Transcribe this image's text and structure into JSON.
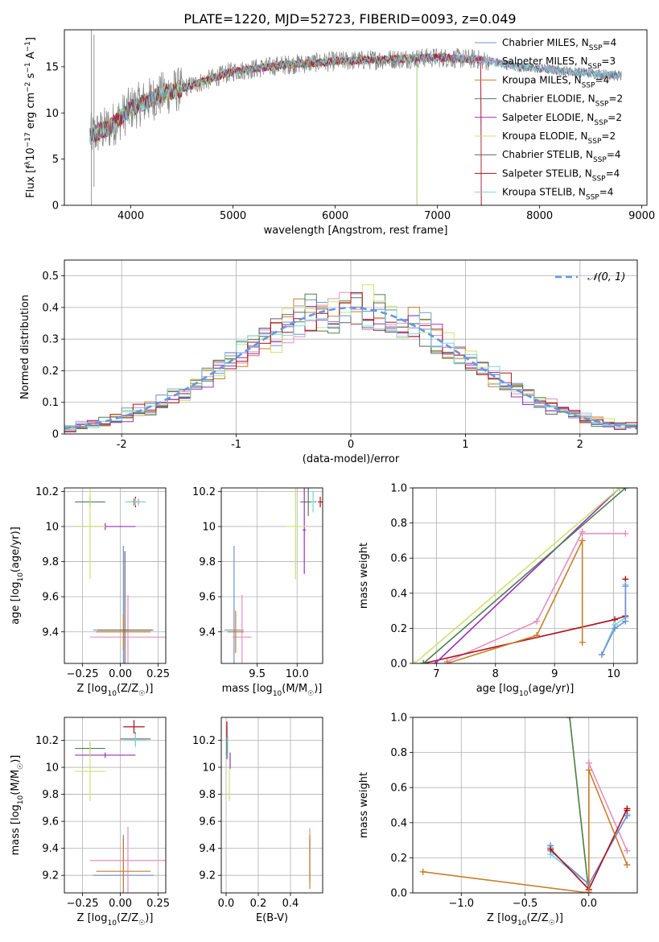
{
  "figure": {
    "title": "PLATE=1220, MJD=52723, FIBERID=0093, z=0.049"
  },
  "models": [
    {
      "name": "Chabrier MILES, N_SSP=4",
      "base": "Chabrier MILES, N",
      "sub": "SSP",
      "tail": "=4",
      "color": "#6f8fd8"
    },
    {
      "name": "Salpeter MILES, N_SSP=3",
      "base": "Salpeter MILES, N",
      "sub": "SSP",
      "tail": "=3",
      "color": "#e68fbf"
    },
    {
      "name": "Kroupa MILES, N_SSP=4",
      "base": "Kroupa MILES, N",
      "sub": "SSP",
      "tail": "=4",
      "color": "#c87f2a"
    },
    {
      "name": "Chabrier ELODIE, N_SSP=2",
      "base": "Chabrier ELODIE, N",
      "sub": "SSP",
      "tail": "=2",
      "color": "#4d8050"
    },
    {
      "name": "Salpeter ELODIE, N_SSP=2",
      "base": "Salpeter ELODIE, N",
      "sub": "SSP",
      "tail": "=2",
      "color": "#9a2fbf"
    },
    {
      "name": "Kroupa ELODIE, N_SSP=2",
      "base": "Kroupa ELODIE, N",
      "sub": "SSP",
      "tail": "=2",
      "color": "#cce270"
    },
    {
      "name": "Chabrier STELIB, N_SSP=4",
      "base": "Chabrier STELIB, N",
      "sub": "SSP",
      "tail": "=4",
      "color": "#606060"
    },
    {
      "name": "Salpeter STELIB, N_SSP=4",
      "base": "Salpeter STELIB, N",
      "sub": "SSP",
      "tail": "=4",
      "color": "#b01018"
    },
    {
      "name": "Kroupa STELIB, N_SSP=4",
      "base": "Kroupa STELIB, N",
      "sub": "SSP",
      "tail": "=4",
      "color": "#7ad6dc"
    }
  ],
  "chart_data": [
    {
      "id": "spectrum",
      "type": "line",
      "xlabel": "wavelength [Angstrom, rest frame]",
      "ylabel": "Flux [f_λ 10^-17 erg cm^-2 s^-1 A^-1]",
      "ylabel_parts": [
        "Flux [f",
        "λ",
        "10",
        "−17",
        " erg cm",
        "−2",
        " s",
        "−1",
        " A",
        "−1",
        "]"
      ],
      "xlim": [
        3350,
        9050
      ],
      "ylim": [
        0,
        19
      ],
      "xticks": [
        4000,
        5000,
        6000,
        7000,
        8000,
        9000
      ],
      "yticks": [
        0,
        5,
        10,
        15
      ],
      "legend": "right",
      "data_color": "#808080",
      "continuum_wavelength": [
        3600,
        3800,
        4000,
        4300,
        4600,
        5000,
        5500,
        6000,
        6500,
        7000,
        7400,
        7800,
        8200,
        8800
      ],
      "continuum_flux": [
        7.5,
        8.5,
        10.5,
        12.0,
        13.0,
        14.5,
        15.2,
        15.6,
        15.8,
        16.0,
        15.8,
        15.0,
        14.6,
        14.0
      ],
      "model_range_end": [
        8800,
        8800,
        7430,
        6800,
        7430,
        6800,
        8800,
        7430,
        8800
      ]
    },
    {
      "id": "residuals",
      "type": "histogram",
      "xlabel": "(data-model)/error",
      "ylabel": "Normed distribution",
      "xlim": [
        -2.5,
        2.5
      ],
      "ylim": [
        0,
        0.55
      ],
      "xticks": [
        -2,
        -1,
        0,
        1,
        2
      ],
      "yticks": [
        0.0,
        0.1,
        0.2,
        0.3,
        0.4,
        0.5
      ],
      "bin_width": 0.1,
      "legend_label": "𝒩(0, 1)",
      "reference": {
        "name": "N(0,1)",
        "mean": 0,
        "sigma": 1,
        "color": "#6495ed"
      }
    },
    {
      "id": "age-vs-Z",
      "type": "errorbar",
      "xlabel": "Z [log10(Z/Z☉)]",
      "xlabel_parts": [
        "Z [log",
        "10",
        "(Z/Z",
        "☉",
        ")]"
      ],
      "ylabel": "age [log10(age/yr)]",
      "ylabel_parts": [
        "age  [log",
        "10",
        "(age/yr)]"
      ],
      "xlim": [
        -0.37,
        0.3
      ],
      "ylim": [
        9.22,
        10.22
      ],
      "xticks": [
        -0.25,
        0.0,
        0.25
      ],
      "xticklabels": [
        "−0.25",
        "0.00",
        "0.25"
      ],
      "yticks": [
        9.4,
        9.6,
        9.8,
        10.0,
        10.2
      ],
      "points": [
        {
          "m": 0,
          "x": 0.02,
          "y": 9.41,
          "xe": 0.2,
          "ye": 0.48
        },
        {
          "m": 0,
          "x": 0.09,
          "y": 10.14,
          "xe": 0.05,
          "ye": 0.02
        },
        {
          "m": 1,
          "x": 0.05,
          "y": 9.37,
          "xe": 0.25,
          "ye": 0.24
        },
        {
          "m": 1,
          "x": 0.12,
          "y": 10.14,
          "xe": 0.04,
          "ye": 0.02
        },
        {
          "m": 2,
          "x": 0.02,
          "y": 9.4,
          "xe": 0.18,
          "ye": 0.1
        },
        {
          "m": 2,
          "x": 0.09,
          "y": 10.14,
          "xe": 0.04,
          "ye": 0.02
        },
        {
          "m": 3,
          "x": -0.2,
          "y": 10.14,
          "xe": 0.1,
          "ye": 0.03
        },
        {
          "m": 4,
          "x": -0.1,
          "y": 10.0,
          "xe": 0.2,
          "ye": 0.02
        },
        {
          "m": 5,
          "x": -0.2,
          "y": 10.0,
          "xe": 0.1,
          "ye": 0.3
        },
        {
          "m": 6,
          "x": 0.03,
          "y": 9.41,
          "xe": 0.18,
          "ye": 0.45
        },
        {
          "m": 7,
          "x": 0.1,
          "y": 10.14,
          "xe": 0.02,
          "ye": 0.03
        },
        {
          "m": 8,
          "x": 0.1,
          "y": 10.14,
          "xe": 0.07,
          "ye": 0.02
        }
      ]
    },
    {
      "id": "age-vs-mass",
      "type": "errorbar",
      "xlabel": "mass [log10(M/M☉)]",
      "xlabel_parts": [
        "mass [log",
        "10",
        "(M/M",
        "☉",
        ")]"
      ],
      "ylabel": "",
      "xlim": [
        9.05,
        10.32
      ],
      "ylim": [
        9.22,
        10.22
      ],
      "xticks": [
        9.5,
        10.0
      ],
      "xticklabels": [
        "9.5",
        "10.0"
      ],
      "yticks": [
        9.4,
        9.6,
        9.8,
        10.0,
        10.2
      ],
      "points": [
        {
          "m": 0,
          "x": 9.21,
          "y": 9.41,
          "xe": 0.12,
          "ye": 0.48
        },
        {
          "m": 1,
          "x": 9.31,
          "y": 9.37,
          "xe": 0.12,
          "ye": 0.24
        },
        {
          "m": 2,
          "x": 9.23,
          "y": 9.4,
          "xe": 0.1,
          "ye": 0.12
        },
        {
          "m": 3,
          "x": 10.14,
          "y": 10.14,
          "xe": 0.1,
          "ye": 0.08
        },
        {
          "m": 4,
          "x": 10.09,
          "y": 9.98,
          "xe": 0.02,
          "ye": 0.25
        },
        {
          "m": 5,
          "x": 9.98,
          "y": 10.0,
          "xe": 0.12,
          "ye": 0.3
        },
        {
          "m": 7,
          "x": 10.29,
          "y": 10.14,
          "xe": 0.03,
          "ye": 0.03
        },
        {
          "m": 8,
          "x": 10.2,
          "y": 10.14,
          "xe": 0.02,
          "ye": 0.06
        }
      ]
    },
    {
      "id": "weight-vs-age",
      "type": "line",
      "xlabel": "age [log10(age/yr)]",
      "xlabel_parts": [
        "age  [log",
        "10",
        "(age/yr)]"
      ],
      "ylabel": "mass weight",
      "xlim": [
        6.6,
        10.4
      ],
      "ylim": [
        0.0,
        1.0
      ],
      "xticks": [
        7,
        8,
        9,
        10
      ],
      "xticklabels": [
        "7",
        "8",
        "9",
        "10"
      ],
      "yticks": [
        0.0,
        0.2,
        0.4,
        0.6,
        0.8,
        1.0
      ],
      "yticklabels": [
        "0.0",
        "0.2",
        "0.4",
        "0.6",
        "0.8",
        "1.0"
      ],
      "series": [
        {
          "m": 1,
          "x": [
            7.18,
            8.7,
            9.47,
            9.47,
            10.2
          ],
          "y": [
            0.01,
            0.24,
            0.75,
            0.74,
            0.74
          ]
        },
        {
          "m": 7,
          "x": [
            6.78,
            10.02,
            10.2,
            10.2
          ],
          "y": [
            0.0,
            0.25,
            0.27,
            0.48
          ]
        },
        {
          "m": 2,
          "x": [
            7.18,
            8.7,
            9.47,
            9.47
          ],
          "y": [
            0.0,
            0.16,
            0.7,
            0.12
          ]
        },
        {
          "m": 4,
          "x": [
            6.98,
            10.1
          ],
          "y": [
            0.0,
            1.0
          ]
        },
        {
          "m": 5,
          "x": [
            6.63,
            10.1
          ],
          "y": [
            0.0,
            1.0
          ]
        },
        {
          "m": 3,
          "x": [
            6.78,
            10.2
          ],
          "y": [
            0.0,
            1.0
          ]
        },
        {
          "m": 8,
          "x": [
            9.8,
            10.02,
            10.2,
            10.2
          ],
          "y": [
            0.05,
            0.22,
            0.26,
            0.45
          ]
        },
        {
          "m": 0,
          "x": [
            9.8,
            10.02,
            10.2,
            10.2
          ],
          "y": [
            0.05,
            0.2,
            0.24,
            0.44
          ]
        }
      ]
    },
    {
      "id": "mass-vs-Z",
      "type": "errorbar",
      "xlabel": "Z [log10(Z/Z☉)]",
      "xlabel_parts": [
        "Z [log",
        "10",
        "(Z/Z",
        "☉",
        ")]"
      ],
      "ylabel": "mass [log10(M/M☉)]",
      "ylabel_parts": [
        "mass [log",
        "10",
        "(M/M",
        "☉",
        ")]"
      ],
      "xlim": [
        -0.37,
        0.3
      ],
      "ylim": [
        9.07,
        10.37
      ],
      "xticks": [
        -0.25,
        0.0,
        0.25
      ],
      "xticklabels": [
        "−0.25",
        "0.00",
        "0.25"
      ],
      "yticks": [
        9.2,
        9.4,
        9.6,
        9.8,
        10.0,
        10.2
      ],
      "points": [
        {
          "m": 0,
          "x": 0.02,
          "y": 9.2,
          "xe": 0.2,
          "ye": 0.3
        },
        {
          "m": 1,
          "x": 0.05,
          "y": 9.31,
          "xe": 0.25,
          "ye": 0.25
        },
        {
          "m": 2,
          "x": 0.02,
          "y": 9.23,
          "xe": 0.18,
          "ye": 0.25
        },
        {
          "m": 3,
          "x": -0.2,
          "y": 10.14,
          "xe": 0.1,
          "ye": 0.05
        },
        {
          "m": 4,
          "x": -0.1,
          "y": 10.09,
          "xe": 0.2,
          "ye": 0.02
        },
        {
          "m": 5,
          "x": -0.2,
          "y": 9.97,
          "xe": 0.1,
          "ye": 0.22
        },
        {
          "m": 6,
          "x": 0.1,
          "y": 10.21,
          "xe": 0.1,
          "ye": 0.05
        },
        {
          "m": 7,
          "x": 0.09,
          "y": 10.3,
          "xe": 0.07,
          "ye": 0.05
        },
        {
          "m": 8,
          "x": 0.1,
          "y": 10.2,
          "xe": 0.07,
          "ye": 0.05
        }
      ]
    },
    {
      "id": "mass-vs-EBV",
      "type": "errorbar",
      "xlabel": "E(B-V)",
      "ylabel": "",
      "xlim": [
        -0.03,
        0.6
      ],
      "ylim": [
        9.07,
        10.37
      ],
      "xticks": [
        0.0,
        0.2,
        0.4
      ],
      "xticklabels": [
        "0.0",
        "0.2",
        "0.4"
      ],
      "yticks": [
        9.2,
        9.4,
        9.6,
        9.8,
        10.0,
        10.2
      ],
      "points": [
        {
          "m": 0,
          "x": 0.52,
          "y": 9.32,
          "xe": 0.0,
          "ye": 0.15
        },
        {
          "m": 1,
          "x": 0.52,
          "y": 9.35,
          "xe": 0.0,
          "ye": 0.2
        },
        {
          "m": 2,
          "x": 0.52,
          "y": 9.3,
          "xe": 0.0,
          "ye": 0.2
        },
        {
          "m": 3,
          "x": 0.005,
          "y": 10.12,
          "xe": 0.0,
          "ye": 0.06
        },
        {
          "m": 4,
          "x": 0.025,
          "y": 10.05,
          "xe": 0.0,
          "ye": 0.06
        },
        {
          "m": 5,
          "x": 0.02,
          "y": 9.88,
          "xe": 0.0,
          "ye": 0.13
        },
        {
          "m": 6,
          "x": 0.005,
          "y": 10.2,
          "xe": 0.0,
          "ye": 0.1
        },
        {
          "m": 7,
          "x": 0.005,
          "y": 10.28,
          "xe": 0.0,
          "ye": 0.06
        },
        {
          "m": 8,
          "x": 0.01,
          "y": 10.15,
          "xe": 0.0,
          "ye": 0.08
        }
      ]
    },
    {
      "id": "weight-vs-Z",
      "type": "line",
      "xlabel": "Z [log10(Z/Z☉)]",
      "xlabel_parts": [
        "Z [log",
        "10",
        "(Z/Z",
        "☉",
        ")]"
      ],
      "ylabel": "mass weight",
      "xlim": [
        -1.38,
        0.38
      ],
      "ylim": [
        0.0,
        1.0
      ],
      "xticks": [
        -1.0,
        -0.5,
        0.0
      ],
      "xticklabels": [
        "−1.0",
        "−0.5",
        "0.0"
      ],
      "yticks": [
        0.0,
        0.2,
        0.4,
        0.6,
        0.8,
        1.0
      ],
      "yticklabels": [
        "0.0",
        "0.2",
        "0.4",
        "0.6",
        "0.8",
        "1.0"
      ],
      "series": [
        {
          "m": 5,
          "x": [
            -0.15,
            0.0
          ],
          "y": [
            1.0,
            0.0
          ]
        },
        {
          "m": 3,
          "x": [
            -0.15,
            0.0
          ],
          "y": [
            1.0,
            0.0
          ]
        },
        {
          "m": 1,
          "x": [
            0.0,
            0.3,
            0.0,
            0.0
          ],
          "y": [
            0.74,
            0.24,
            0.74,
            0.01
          ]
        },
        {
          "m": 8,
          "x": [
            -0.3,
            -0.3,
            0.0,
            0.3,
            0.3
          ],
          "y": [
            0.26,
            0.22,
            0.05,
            0.44,
            0.45
          ]
        },
        {
          "m": 0,
          "x": [
            -0.3,
            -0.3,
            0.0,
            0.3
          ],
          "y": [
            0.27,
            0.24,
            0.05,
            0.44
          ]
        },
        {
          "m": 7,
          "x": [
            -0.3,
            0.0,
            0.3,
            0.3
          ],
          "y": [
            0.25,
            0.02,
            0.48,
            0.47
          ]
        },
        {
          "m": 2,
          "x": [
            -1.3,
            0.0,
            0.0,
            0.3
          ],
          "y": [
            0.12,
            0.0,
            0.7,
            0.16
          ]
        }
      ]
    }
  ]
}
